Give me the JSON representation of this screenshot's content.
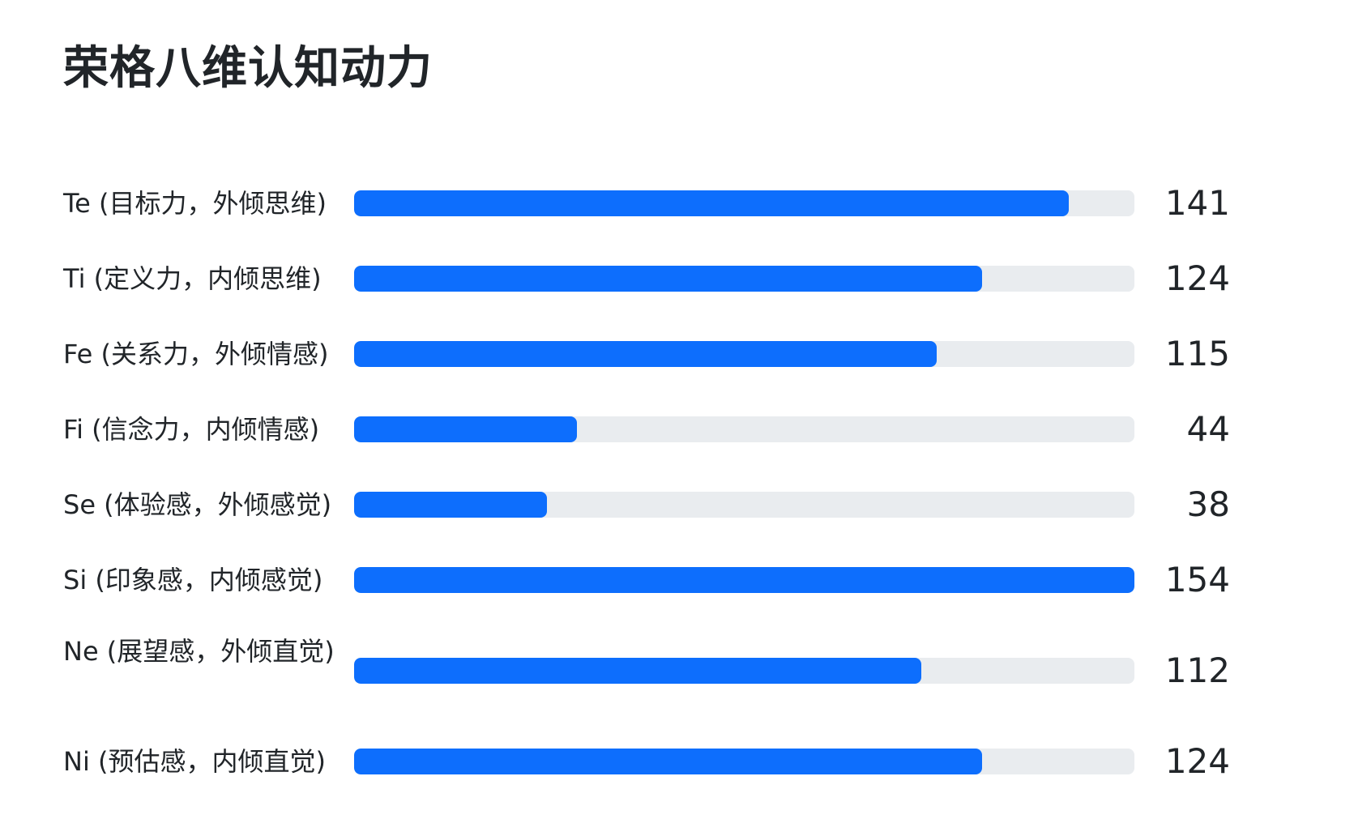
{
  "chart_data": {
    "type": "bar",
    "orientation": "horizontal",
    "title": "荣格八维认知动力",
    "categories": [
      "Te (目标力，外倾思维)",
      "Ti (定义力，内倾思维)",
      "Fe (关系力，外倾情感)",
      "Fi (信念力，内倾情感)",
      "Se (体验感，外倾感觉)",
      "Si (印象感，内倾感觉)",
      "Ne (展望感，外倾直觉)",
      "Ni (预估感，内倾直觉)"
    ],
    "values": [
      141,
      124,
      115,
      44,
      38,
      154,
      112,
      124
    ],
    "xlim": [
      0,
      154
    ],
    "grid": false,
    "colors": {
      "bar": "#0d6efd",
      "track": "#e9ecef",
      "text": "#212529"
    }
  }
}
